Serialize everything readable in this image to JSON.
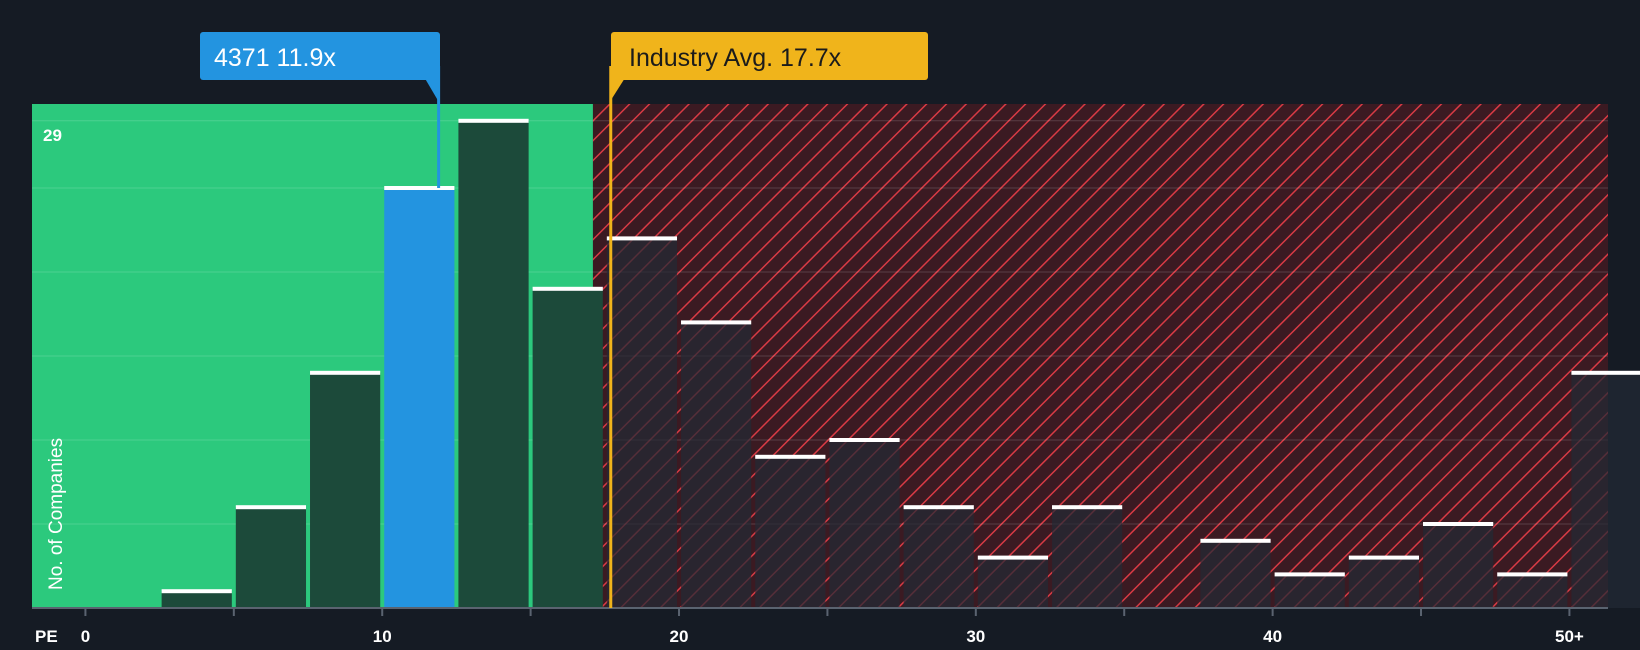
{
  "chart_data": {
    "type": "bar",
    "xlabel": "PE",
    "ylabel": "No. of Companies",
    "x_ticks": [
      {
        "value": 0,
        "label": "0"
      },
      {
        "value": 10,
        "label": "10"
      },
      {
        "value": 20,
        "label": "20"
      },
      {
        "value": 30,
        "label": "30"
      },
      {
        "value": 40,
        "label": "40"
      },
      {
        "value": 50,
        "label": "50+"
      }
    ],
    "y_max_label": "29",
    "ylim": [
      0,
      30
    ],
    "xlim": [
      -1.8,
      51.3
    ],
    "fair_zone_end": 17.1,
    "bin_width": 2.5,
    "bins": [
      {
        "start": 2.5,
        "value": 1
      },
      {
        "start": 5.0,
        "value": 6
      },
      {
        "start": 7.5,
        "value": 14
      },
      {
        "start": 10.0,
        "value": 25,
        "highlight": true
      },
      {
        "start": 12.5,
        "value": 29
      },
      {
        "start": 15.0,
        "value": 19
      },
      {
        "start": 17.5,
        "value": 22
      },
      {
        "start": 20.0,
        "value": 17
      },
      {
        "start": 22.5,
        "value": 9
      },
      {
        "start": 25.0,
        "value": 10
      },
      {
        "start": 27.5,
        "value": 6
      },
      {
        "start": 30.0,
        "value": 3
      },
      {
        "start": 32.5,
        "value": 6
      },
      {
        "start": 35.0,
        "value": 0
      },
      {
        "start": 37.5,
        "value": 4
      },
      {
        "start": 40.0,
        "value": 2
      },
      {
        "start": 42.5,
        "value": 3
      },
      {
        "start": 45.0,
        "value": 5
      },
      {
        "start": 47.5,
        "value": 2
      },
      {
        "start": 50.0,
        "value": 14
      }
    ],
    "company": {
      "label": "4371 11.9x",
      "pe": 11.9
    },
    "industry": {
      "label": "Industry Avg. 17.7x",
      "pe": 17.7
    }
  },
  "colors": {
    "background": "#151b24",
    "fair_zone": "#2cc97d",
    "bar_dark": "#1c4a3a",
    "bar_highlight": "#2394e0",
    "hatch_bg": "#3b1a22",
    "hatch_line": "#d83a44",
    "bar_in_hatch": "#222a35",
    "industry": "#f0b41b",
    "company": "#2394e0",
    "text": "#ffffff"
  }
}
